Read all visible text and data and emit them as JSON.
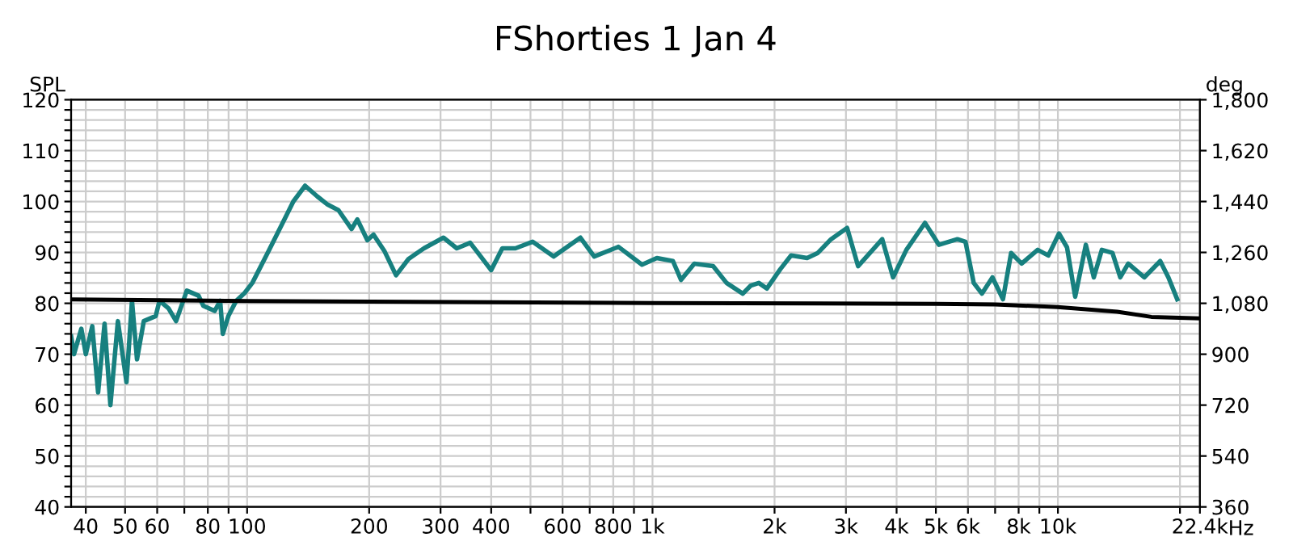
{
  "chart_data": {
    "type": "line",
    "title": "FShorties 1 Jan 4",
    "ylabel": "SPL",
    "y2label": "deg",
    "log": "x",
    "grid": true,
    "legend": false,
    "marker": "none",
    "line_style": "solid",
    "xlim": [
      36.8,
      22400
    ],
    "ylim": [
      40,
      120
    ],
    "y2lim": [
      360,
      1800
    ],
    "xticks": [
      40,
      50,
      60,
      {
        "value": 70,
        "label": null
      },
      80,
      {
        "value": 90,
        "label": null
      },
      100,
      200,
      300,
      400,
      {
        "value": 500,
        "label": null
      },
      600,
      {
        "value": 700,
        "label": null
      },
      800,
      {
        "value": 900,
        "label": null
      },
      {
        "value": 1000,
        "label": "1k"
      },
      {
        "value": 2000,
        "label": "2k"
      },
      {
        "value": 3000,
        "label": "3k"
      },
      {
        "value": 4000,
        "label": "4k"
      },
      {
        "value": 5000,
        "label": "5k"
      },
      {
        "value": 6000,
        "label": "6k"
      },
      {
        "value": 7000,
        "label": null
      },
      {
        "value": 8000,
        "label": "8k"
      },
      {
        "value": 9000,
        "label": null
      },
      {
        "value": 10000,
        "label": "10k"
      },
      {
        "value": 20000,
        "label": null
      },
      {
        "value": 22400,
        "label": "22.4k"
      }
    ],
    "xlabel": "Hz",
    "yticks": [
      40,
      {
        "value": 42,
        "label": null
      },
      {
        "value": 44,
        "label": null
      },
      {
        "value": 46,
        "label": null
      },
      {
        "value": 48,
        "label": null
      },
      50,
      {
        "value": 52,
        "label": null
      },
      {
        "value": 54,
        "label": null
      },
      {
        "value": 56,
        "label": null
      },
      {
        "value": 58,
        "label": null
      },
      60,
      {
        "value": 62,
        "label": null
      },
      {
        "value": 64,
        "label": null
      },
      {
        "value": 66,
        "label": null
      },
      {
        "value": 68,
        "label": null
      },
      70,
      {
        "value": 72,
        "label": null
      },
      {
        "value": 74,
        "label": null
      },
      {
        "value": 76,
        "label": null
      },
      {
        "value": 78,
        "label": null
      },
      80,
      {
        "value": 82,
        "label": null
      },
      {
        "value": 84,
        "label": null
      },
      {
        "value": 86,
        "label": null
      },
      {
        "value": 88,
        "label": null
      },
      90,
      {
        "value": 92,
        "label": null
      },
      {
        "value": 94,
        "label": null
      },
      {
        "value": 96,
        "label": null
      },
      {
        "value": 98,
        "label": null
      },
      100,
      {
        "value": 102,
        "label": null
      },
      {
        "value": 104,
        "label": null
      },
      {
        "value": 106,
        "label": null
      },
      {
        "value": 108,
        "label": null
      },
      110,
      {
        "value": 112,
        "label": null
      },
      {
        "value": 114,
        "label": null
      },
      {
        "value": 116,
        "label": null
      },
      {
        "value": 118,
        "label": null
      },
      120
    ],
    "y2ticks": [
      360,
      540,
      720,
      900,
      {
        "value": 1080,
        "label": "1,080"
      },
      {
        "value": 1260,
        "label": "1,260"
      },
      {
        "value": 1440,
        "label": "1,440"
      },
      {
        "value": 1620,
        "label": "1,620"
      },
      {
        "value": 1800,
        "label": "1,800"
      }
    ],
    "series": [
      {
        "color": "#17807f",
        "x": [
          36.8,
          37.4,
          39,
          40,
          41.5,
          42.9,
          44.5,
          46,
          48,
          50.4,
          52,
          53.5,
          55.6,
          59.5,
          60.8,
          64,
          66.8,
          71,
          75.9,
          78,
          83.2,
          85.8,
          87.1,
          89.9,
          94,
          98.5,
          103,
          113,
          124,
          130,
          139,
          149,
          158,
          168,
          181,
          187,
          198,
          205,
          218,
          233,
          250,
          273,
          305,
          329,
          355,
          377,
          400,
          426,
          459,
          506,
          570,
          664,
          718,
          824,
          942,
          1025,
          1123,
          1176,
          1268,
          1411,
          1523,
          1670,
          1748,
          1829,
          1914,
          2066,
          2197,
          2406,
          2557,
          2757,
          3020,
          3214,
          3687,
          3921,
          4229,
          4700,
          5085,
          5650,
          5915,
          6199,
          6496,
          6895,
          7319,
          7666,
          8138,
          8915,
          9470,
          10060,
          10530,
          11030,
          11720,
          12260,
          12830,
          13630,
          14250,
          14910,
          16330,
          17880,
          18730,
          19690
        ],
        "values": [
          73.5,
          70,
          75,
          70,
          75.5,
          62.5,
          76,
          60,
          76.5,
          64.5,
          80.5,
          69,
          76.5,
          77.5,
          80.5,
          79,
          76.5,
          82.5,
          81.5,
          79.5,
          78.5,
          80.5,
          74,
          77.5,
          80.5,
          82,
          84,
          90.3,
          96.7,
          100,
          103.1,
          101,
          99.4,
          98.3,
          94.6,
          96.5,
          92.4,
          93.5,
          90.3,
          85.5,
          88.7,
          90.8,
          92.9,
          90.8,
          91.9,
          89.2,
          86.5,
          90.8,
          90.8,
          92.1,
          89.2,
          92.9,
          89.2,
          91.1,
          87.6,
          88.9,
          88.3,
          84.6,
          87.8,
          87.3,
          84,
          81.9,
          83.5,
          84,
          82.9,
          86.7,
          89.4,
          88.9,
          89.9,
          92.6,
          94.8,
          87.3,
          92.6,
          85.1,
          90.5,
          95.8,
          91.5,
          92.6,
          92.1,
          84,
          81.9,
          85.1,
          80.8,
          89.9,
          87.8,
          90.5,
          89.4,
          93.7,
          91,
          81.3,
          91.5,
          85.1,
          90.5,
          89.9,
          85.1,
          87.8,
          85.1,
          88.3,
          85.1,
          80.8
        ]
      },
      {
        "color": "#000000",
        "axis": "y2",
        "x": [
          36.8,
          100,
          1000,
          5000,
          7000,
          10000,
          14000,
          17000,
          22400
        ],
        "values": [
          1094,
          1088,
          1081,
          1078,
          1076,
          1067,
          1050,
          1032,
          1027
        ]
      }
    ]
  }
}
